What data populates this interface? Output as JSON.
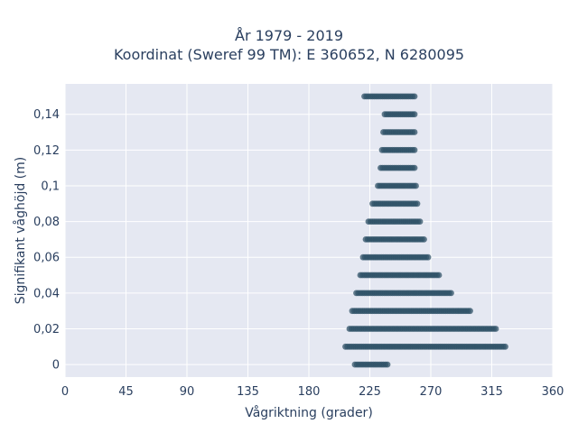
{
  "chart_data": {
    "type": "scatter",
    "title": "År 1979 - 2019",
    "subtitle": "Koordinat (Sweref 99 TM): E 360652, N 6280095",
    "xlabel": "Vågriktning (grader)",
    "ylabel": "Signifikant våghöjd (m)",
    "xlim": [
      0,
      360
    ],
    "ylim": [
      -0.007,
      0.157
    ],
    "xticks": [
      0,
      45,
      90,
      135,
      180,
      225,
      270,
      315,
      360
    ],
    "yticks": [
      0,
      0.02,
      0.04,
      0.06,
      0.08,
      0.1,
      0.12,
      0.14
    ],
    "ytick_labels": [
      "0",
      "0,02",
      "0,04",
      "0,06",
      "0,08",
      "0,1",
      "0,12",
      "0,14"
    ],
    "grid": true,
    "marker_color": "#2f5167",
    "plot_bgcolor": "#e5e8f2",
    "bands": [
      {
        "y": 0.0,
        "x_min": 214,
        "x_max": 238
      },
      {
        "y": 0.01,
        "x_min": 207,
        "x_max": 325
      },
      {
        "y": 0.02,
        "x_min": 210,
        "x_max": 318
      },
      {
        "y": 0.03,
        "x_min": 212,
        "x_max": 299
      },
      {
        "y": 0.04,
        "x_min": 215,
        "x_max": 285
      },
      {
        "y": 0.05,
        "x_min": 218,
        "x_max": 276
      },
      {
        "y": 0.06,
        "x_min": 220,
        "x_max": 268
      },
      {
        "y": 0.07,
        "x_min": 222,
        "x_max": 265
      },
      {
        "y": 0.08,
        "x_min": 224,
        "x_max": 262
      },
      {
        "y": 0.09,
        "x_min": 227,
        "x_max": 260
      },
      {
        "y": 0.1,
        "x_min": 231,
        "x_max": 259
      },
      {
        "y": 0.11,
        "x_min": 233,
        "x_max": 258
      },
      {
        "y": 0.12,
        "x_min": 234,
        "x_max": 258
      },
      {
        "y": 0.13,
        "x_min": 235,
        "x_max": 258
      },
      {
        "y": 0.14,
        "x_min": 236,
        "x_max": 258
      },
      {
        "y": 0.15,
        "x_min": 221,
        "x_max": 258
      }
    ]
  }
}
